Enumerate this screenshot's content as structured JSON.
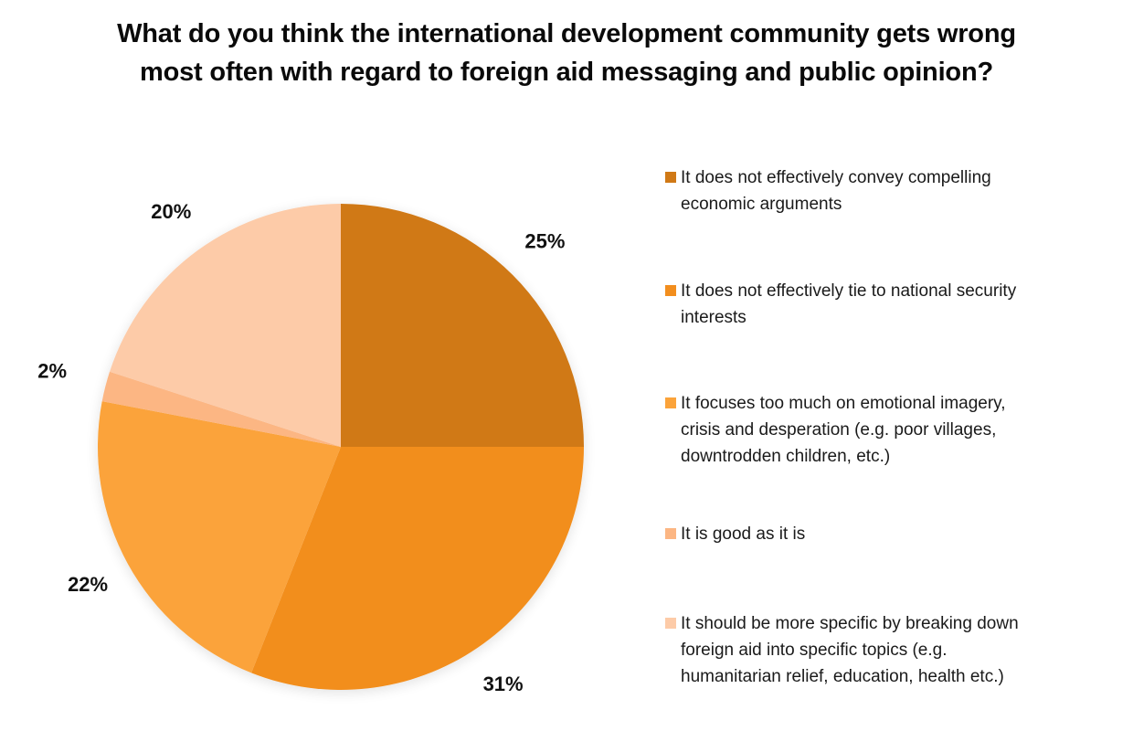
{
  "chart_data": {
    "type": "pie",
    "title": "What do you think the international development community gets wrong most often with regard to foreign aid messaging and public opinion?",
    "title_lines": [
      "What do you think the international development community gets wrong",
      "most often with regard to foreign aid messaging and public opinion?"
    ],
    "legend_position": "right",
    "start_angle": "12 o'clock",
    "direction": "clockwise",
    "unit": "%",
    "slices": [
      {
        "label": "It does not effectively convey compelling economic arguments",
        "label_lines": [
          "It does not effectively convey compelling",
          "economic arguments"
        ],
        "value": 25,
        "data_label": "25%",
        "color": "#D07916"
      },
      {
        "label": "It does not effectively tie to national security interests",
        "label_lines": [
          "It does not effectively tie to national security",
          "interests"
        ],
        "value": 31,
        "data_label": "31%",
        "color": "#F28E1E"
      },
      {
        "label": "It focuses too much on emotional imagery, crisis and desperation (e.g. poor villages, downtrodden children, etc.)",
        "label_lines": [
          "It focuses too much on emotional imagery,",
          "crisis and desperation (e.g. poor villages,",
          "downtrodden children, etc.)"
        ],
        "value": 22,
        "data_label": "22%",
        "color": "#FBA33A"
      },
      {
        "label": "It is good as it is",
        "label_lines": [
          "It is good as it is"
        ],
        "value": 2,
        "data_label": "2%",
        "color": "#FCB683"
      },
      {
        "label": "It should be more specific by breaking down foreign aid into specific topics (e.g. humanitarian relief, education, health etc.)",
        "label_lines": [
          "It should be more specific by breaking down",
          "foreign aid into specific topics (e.g.",
          "humanitarian relief, education, health etc.)"
        ],
        "value": 20,
        "data_label": "20%",
        "color": "#FDCBA8"
      }
    ]
  }
}
